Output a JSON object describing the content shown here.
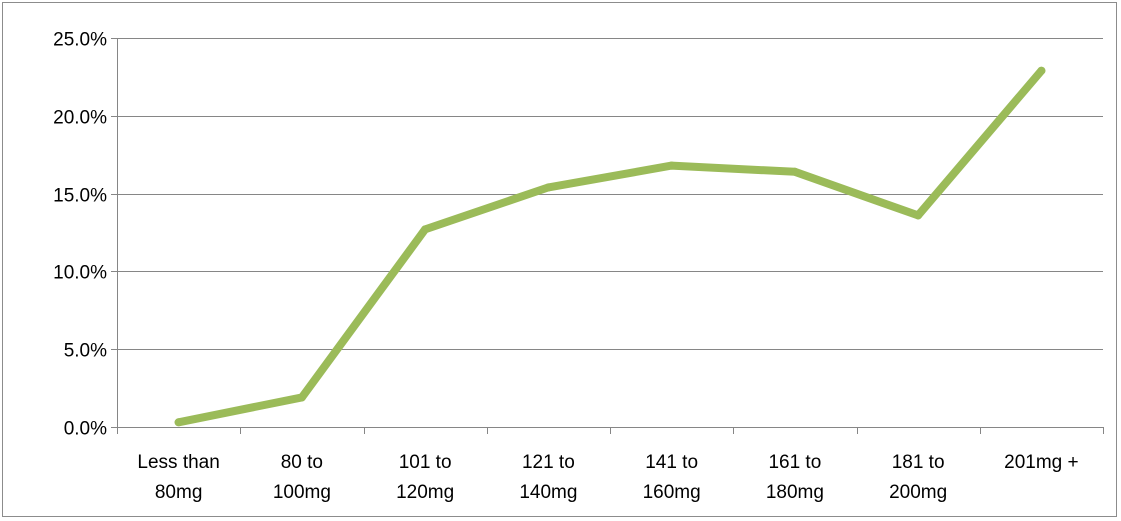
{
  "chart_data": {
    "type": "line",
    "title": "",
    "xlabel": "",
    "ylabel": "",
    "categories": [
      [
        "Less than",
        "80mg"
      ],
      [
        "80 to",
        "100mg"
      ],
      [
        "101 to",
        "120mg"
      ],
      [
        "121 to",
        "140mg"
      ],
      [
        "141 to",
        "160mg"
      ],
      [
        "161 to",
        "180mg"
      ],
      [
        "181 to",
        "200mg"
      ],
      [
        "201mg +"
      ]
    ],
    "series": [
      {
        "values": [
          0.3,
          1.9,
          12.7,
          15.4,
          16.8,
          16.4,
          13.6,
          22.9
        ]
      }
    ],
    "ylim": [
      0,
      25
    ],
    "yticks": [
      0,
      5,
      10,
      15,
      20,
      25
    ],
    "ytick_labels": [
      "0.0%",
      "5.0%",
      "10.0%",
      "15.0%",
      "20.0%",
      "25.0%"
    ],
    "grid": true,
    "legend": "none",
    "colors": {
      "line": "#9bbb59",
      "grid": "#868686",
      "axis": "#868686"
    }
  }
}
